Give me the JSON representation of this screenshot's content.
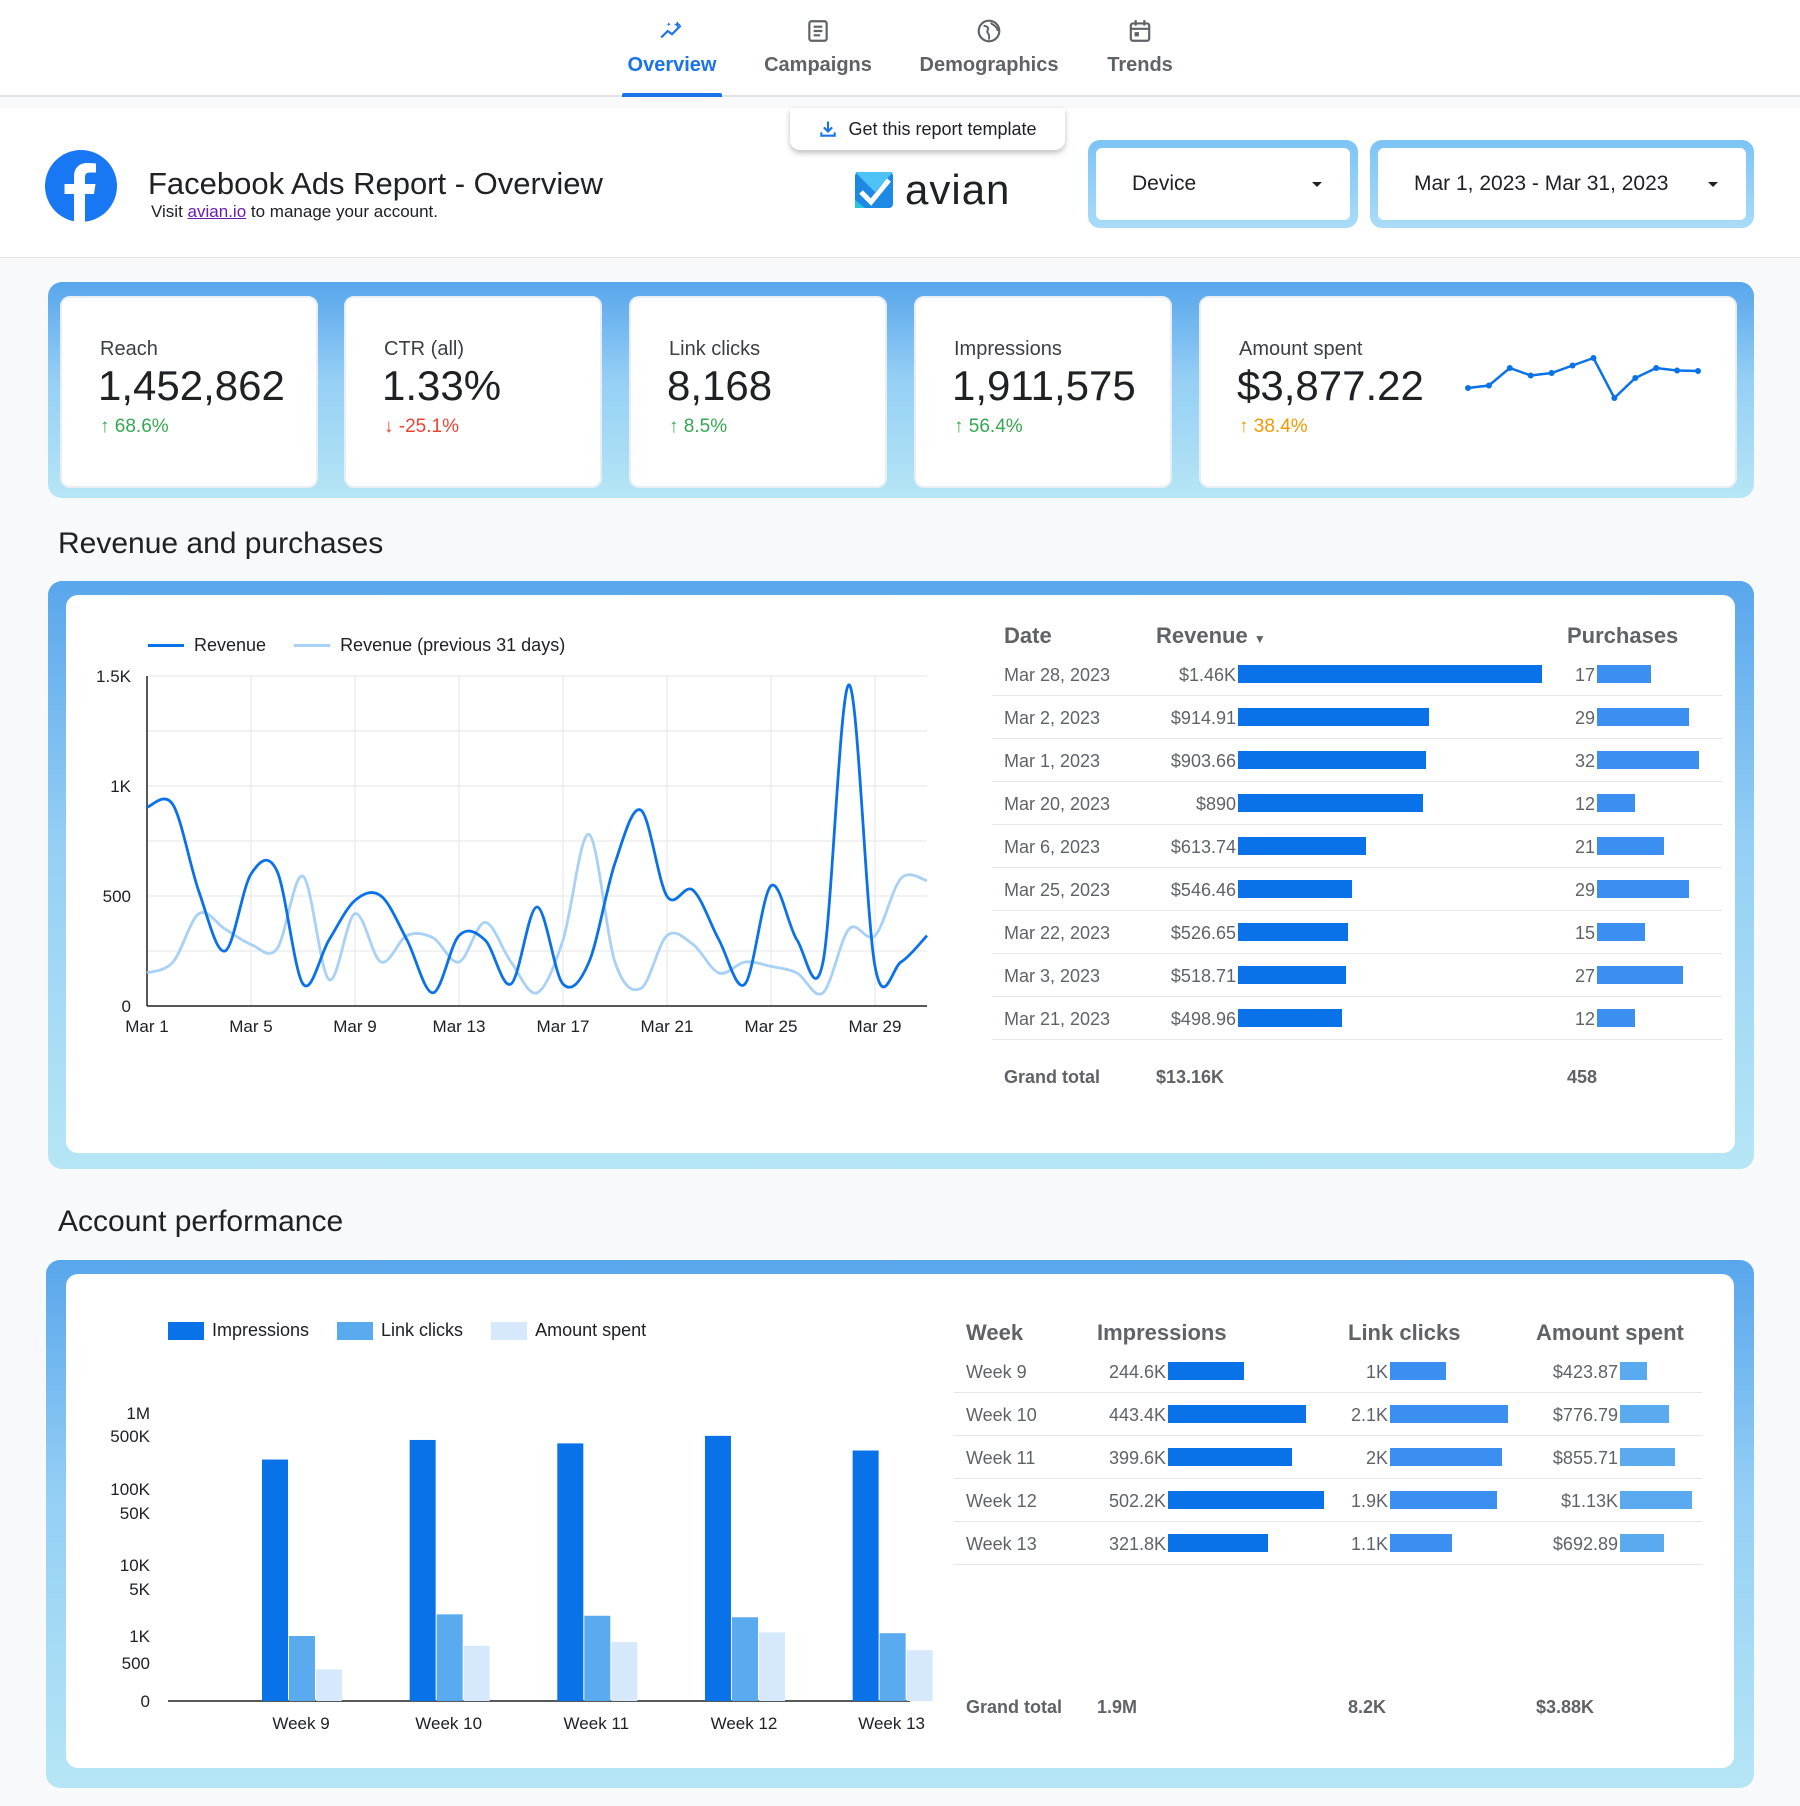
{
  "nav": {
    "tabs": [
      {
        "label": "Overview",
        "icon": "sparkline-icon",
        "active": true
      },
      {
        "label": "Campaigns",
        "icon": "list-icon",
        "active": false
      },
      {
        "label": "Demographics",
        "icon": "globe-icon",
        "active": false
      },
      {
        "label": "Trends",
        "icon": "calendar-icon",
        "active": false
      }
    ]
  },
  "header": {
    "template_button": "Get this report template",
    "title": "Facebook Ads Report - Overview",
    "subtitle_prefix": "Visit",
    "subtitle_link": "avian.io",
    "subtitle_suffix": "to manage your account.",
    "brand": "avian",
    "device_label": "Device",
    "date_range": "Mar 1, 2023 - Mar 31, 2023"
  },
  "kpis": [
    {
      "label": "Reach",
      "value": "1,452,862",
      "delta": "68.6%",
      "dir": "up",
      "tone": "pos"
    },
    {
      "label": "CTR (all)",
      "value": "1.33%",
      "delta": "-25.1%",
      "dir": "down",
      "tone": "neg"
    },
    {
      "label": "Link clicks",
      "value": "8,168",
      "delta": "8.5%",
      "dir": "up",
      "tone": "pos"
    },
    {
      "label": "Impressions",
      "value": "1,911,575",
      "delta": "56.4%",
      "dir": "up",
      "tone": "pos"
    },
    {
      "label": "Amount spent",
      "value": "$3,877.22",
      "delta": "38.4%",
      "dir": "up",
      "tone": "ora"
    }
  ],
  "colors": {
    "primary": "#0a72e8",
    "secondary": "#5aaaf0",
    "light": "#a9d1f5",
    "tertiary": "#d6e8fb"
  },
  "sections": {
    "revenue": "Revenue and purchases",
    "account": "Account performance"
  },
  "chart_data": [
    {
      "type": "sparkline",
      "title": "Amount spent trend",
      "values": [
        120,
        125,
        160,
        145,
        150,
        165,
        180,
        100,
        140,
        160,
        155,
        154
      ]
    },
    {
      "type": "line",
      "title": "Revenue and purchases",
      "legend": [
        "Revenue",
        "Revenue (previous 31 days)"
      ],
      "x_tick_labels": [
        "Mar 1",
        "Mar 5",
        "Mar 9",
        "Mar 13",
        "Mar 17",
        "Mar 21",
        "Mar 25",
        "Mar 29"
      ],
      "y_tick_labels": [
        "0",
        "500",
        "1K",
        "1.5K"
      ],
      "ylim": [
        0,
        1500
      ],
      "series": [
        {
          "name": "Revenue",
          "values": [
            903.66,
            914.91,
            518.71,
            250,
            600,
            613.74,
            100,
            300,
            480,
            500,
            300,
            60,
            320,
            300,
            100,
            450,
            100,
            200,
            650,
            890,
            498.96,
            526.65,
            300,
            100,
            546.46,
            300,
            200,
            1460,
            180,
            200,
            320
          ]
        },
        {
          "name": "Revenue (previous 31 days)",
          "values": [
            150,
            200,
            420,
            350,
            280,
            260,
            590,
            120,
            420,
            200,
            320,
            310,
            200,
            380,
            200,
            60,
            300,
            780,
            200,
            80,
            320,
            280,
            150,
            200,
            180,
            150,
            60,
            350,
            320,
            580,
            570
          ]
        }
      ]
    },
    {
      "type": "bar",
      "title": "Account performance",
      "scale": "log",
      "legend": [
        "Impressions",
        "Link clicks",
        "Amount spent"
      ],
      "categories": [
        "Week 9",
        "Week 10",
        "Week 11",
        "Week 12",
        "Week 13"
      ],
      "y_tick_labels": [
        "0",
        "500",
        "1K",
        "5K",
        "10K",
        "50K",
        "100K",
        "500K",
        "1M"
      ],
      "series": [
        {
          "name": "Impressions",
          "values": [
            244600,
            443400,
            399600,
            502200,
            321800
          ]
        },
        {
          "name": "Link clicks",
          "values": [
            1000,
            2100,
            2000,
            1900,
            1100
          ]
        },
        {
          "name": "Amount spent",
          "values": [
            423.87,
            776.79,
            855.71,
            1130,
            692.89
          ]
        }
      ]
    }
  ],
  "revenue_table": {
    "headers": {
      "date": "Date",
      "revenue": "Revenue",
      "purchases": "Purchases"
    },
    "rows": [
      {
        "date": "Mar 28, 2023",
        "revenue": "$1.46K",
        "rev": 1460,
        "purchases": "17",
        "p": 17
      },
      {
        "date": "Mar 2, 2023",
        "revenue": "$914.91",
        "rev": 914.91,
        "purchases": "29",
        "p": 29
      },
      {
        "date": "Mar 1, 2023",
        "revenue": "$903.66",
        "rev": 903.66,
        "purchases": "32",
        "p": 32
      },
      {
        "date": "Mar 20, 2023",
        "revenue": "$890",
        "rev": 890,
        "purchases": "12",
        "p": 12
      },
      {
        "date": "Mar 6, 2023",
        "revenue": "$613.74",
        "rev": 613.74,
        "purchases": "21",
        "p": 21
      },
      {
        "date": "Mar 25, 2023",
        "revenue": "$546.46",
        "rev": 546.46,
        "purchases": "29",
        "p": 29
      },
      {
        "date": "Mar 22, 2023",
        "revenue": "$526.65",
        "rev": 526.65,
        "purchases": "15",
        "p": 15
      },
      {
        "date": "Mar 3, 2023",
        "revenue": "$518.71",
        "rev": 518.71,
        "purchases": "27",
        "p": 27
      },
      {
        "date": "Mar 21, 2023",
        "revenue": "$498.96",
        "rev": 498.96,
        "purchases": "12",
        "p": 12
      }
    ],
    "grand_total": {
      "label": "Grand total",
      "revenue": "$13.16K",
      "purchases": "458"
    }
  },
  "week_table": {
    "headers": {
      "week": "Week",
      "impressions": "Impressions",
      "clicks": "Link clicks",
      "spent": "Amount spent"
    },
    "rows": [
      {
        "week": "Week 9",
        "impressions": "244.6K",
        "imp": 244.6,
        "clicks": "1K",
        "clk": 1.0,
        "spent": "$423.87",
        "sp": 423.87
      },
      {
        "week": "Week 10",
        "impressions": "443.4K",
        "imp": 443.4,
        "clicks": "2.1K",
        "clk": 2.1,
        "spent": "$776.79",
        "sp": 776.79
      },
      {
        "week": "Week 11",
        "impressions": "399.6K",
        "imp": 399.6,
        "clicks": "2K",
        "clk": 2.0,
        "spent": "$855.71",
        "sp": 855.71
      },
      {
        "week": "Week 12",
        "impressions": "502.2K",
        "imp": 502.2,
        "clicks": "1.9K",
        "clk": 1.9,
        "spent": "$1.13K",
        "sp": 1130
      },
      {
        "week": "Week 13",
        "impressions": "321.8K",
        "imp": 321.8,
        "clicks": "1.1K",
        "clk": 1.1,
        "spent": "$692.89",
        "sp": 692.89
      }
    ],
    "grand_total": {
      "label": "Grand total",
      "impressions": "1.9M",
      "clicks": "8.2K",
      "spent": "$3.88K"
    }
  }
}
